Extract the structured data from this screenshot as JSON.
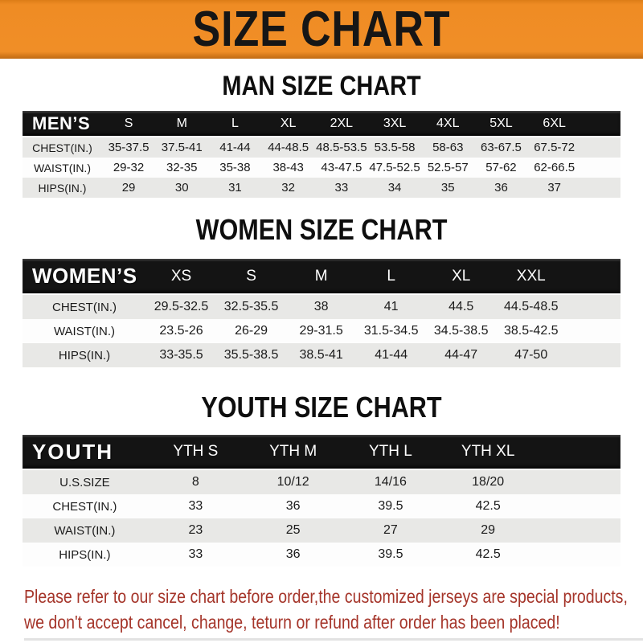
{
  "banner": {
    "title": "SIZE CHART"
  },
  "sections": [
    {
      "id": "men",
      "title": "MAN SIZE CHART",
      "header_label": "MEN’S",
      "columns": [
        "S",
        "M",
        "L",
        "XL",
        "2XL",
        "3XL",
        "4XL",
        "5XL",
        "6XL"
      ],
      "rows": [
        {
          "label": "CHEST(IN.)",
          "values": [
            "35-37.5",
            "37.5-41",
            "41-44",
            "44-48.5",
            "48.5-53.5",
            "53.5-58",
            "58-63",
            "63-67.5",
            "67.5-72"
          ]
        },
        {
          "label": "WAIST(IN.)",
          "values": [
            "29-32",
            "32-35",
            "35-38",
            "38-43",
            "43-47.5",
            "47.5-52.5",
            "52.5-57",
            "57-62",
            "62-66.5"
          ]
        },
        {
          "label": "HIPS(IN.)",
          "values": [
            "29",
            "30",
            "31",
            "32",
            "33",
            "34",
            "35",
            "36",
            "37"
          ]
        }
      ]
    },
    {
      "id": "women",
      "title": "WOMEN SIZE CHART",
      "header_label": "WOMEN’S",
      "columns": [
        "XS",
        "S",
        "M",
        "L",
        "XL",
        "XXL"
      ],
      "rows": [
        {
          "label": "CHEST(IN.)",
          "values": [
            "29.5-32.5",
            "32.5-35.5",
            "38",
            "41",
            "44.5",
            "44.5-48.5"
          ]
        },
        {
          "label": "WAIST(IN.)",
          "values": [
            "23.5-26",
            "26-29",
            "29-31.5",
            "31.5-34.5",
            "34.5-38.5",
            "38.5-42.5"
          ]
        },
        {
          "label": "HIPS(IN.)",
          "values": [
            "33-35.5",
            "35.5-38.5",
            "38.5-41",
            "41-44",
            "44-47",
            "47-50"
          ]
        }
      ]
    },
    {
      "id": "youth",
      "title": "YOUTH SIZE CHART",
      "header_label": "YOUTH",
      "columns": [
        "YTH S",
        "YTH M",
        "YTH L",
        "YTH XL"
      ],
      "rows": [
        {
          "label": "U.S.SIZE",
          "values": [
            "8",
            "10/12",
            "14/16",
            "18/20"
          ]
        },
        {
          "label": "CHEST(IN.)",
          "values": [
            "33",
            "36",
            "39.5",
            "42.5"
          ]
        },
        {
          "label": "WAIST(IN.)",
          "values": [
            "23",
            "25",
            "27",
            "29"
          ]
        },
        {
          "label": "HIPS(IN.)",
          "values": [
            "33",
            "36",
            "39.5",
            "42.5"
          ]
        }
      ]
    }
  ],
  "footer": {
    "line1": "Please refer to our size chart before order,the customized jerseys are special products,",
    "line2": "we don't accept cancel, change, teturn or refund after order has been placed!"
  },
  "colors": {
    "banner_orange": "#EF8C24",
    "header_black": "#141414",
    "row_gray": "#E8E8E6",
    "footer_red": "#A5352A"
  }
}
